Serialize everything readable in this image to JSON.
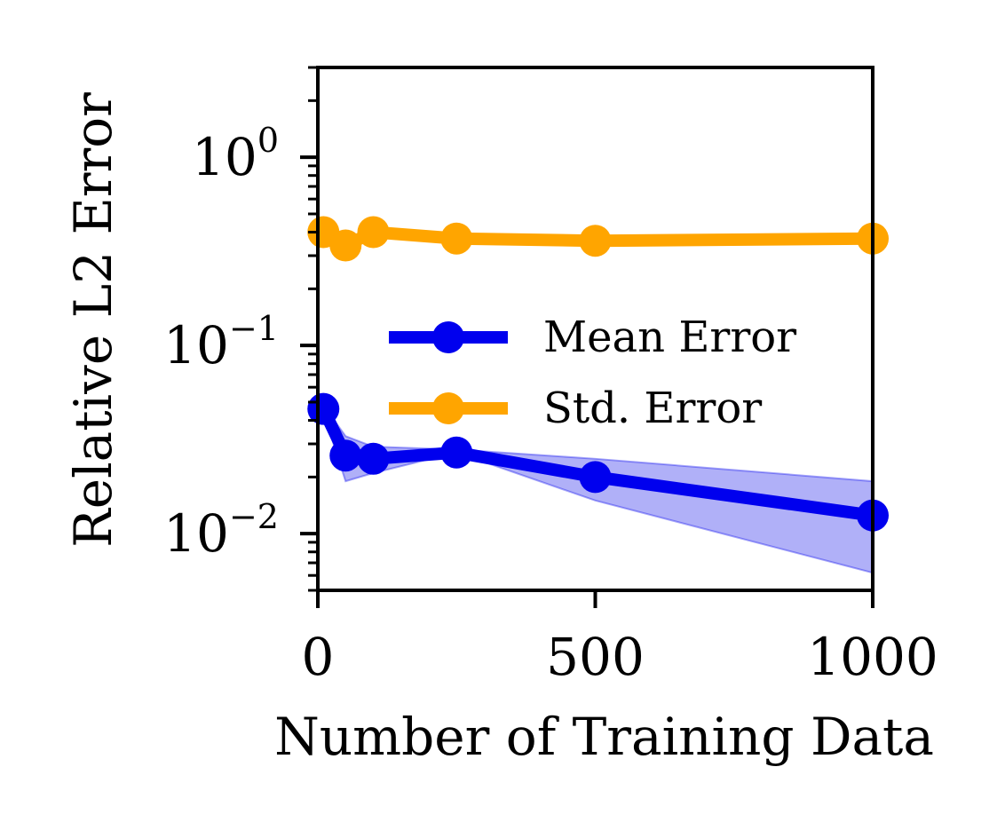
{
  "chart_data": {
    "type": "line",
    "title": "",
    "xlabel": "Number of Training Data",
    "ylabel": "Relative L2 Error",
    "xlim": [
      0,
      1000
    ],
    "ylim": [
      0.005,
      3.0
    ],
    "yscale": "log",
    "x_ticks": [
      0,
      500,
      1000
    ],
    "x_tick_labels": [
      "0",
      "500",
      "1000"
    ],
    "y_ticks": [
      0.01,
      0.1,
      1
    ],
    "y_tick_labels": [
      {
        "base": "10",
        "exp": "−2"
      },
      {
        "base": "10",
        "exp": "−1"
      },
      {
        "base": "10",
        "exp": "0"
      }
    ],
    "legend_position": "center-right",
    "series": [
      {
        "name": "Mean Error",
        "color": "#0000ee",
        "band_color": "#6f6ff2",
        "x": [
          10,
          50,
          100,
          250,
          500,
          1000
        ],
        "values": [
          0.046,
          0.026,
          0.025,
          0.027,
          0.02,
          0.0125
        ],
        "lower": [
          0.044,
          0.019,
          0.021,
          0.027,
          0.015,
          0.0062
        ],
        "upper": [
          0.048,
          0.033,
          0.029,
          0.028,
          0.025,
          0.019
        ]
      },
      {
        "name": "Std. Error",
        "color": "#ffa500",
        "band_color": "#ffc766",
        "x": [
          10,
          50,
          100,
          250,
          500,
          1000
        ],
        "values": [
          0.4,
          0.34,
          0.4,
          0.37,
          0.36,
          0.37
        ],
        "lower": [
          0.39,
          0.33,
          0.38,
          0.35,
          0.34,
          0.35
        ],
        "upper": [
          0.41,
          0.35,
          0.42,
          0.39,
          0.38,
          0.39
        ]
      }
    ]
  }
}
